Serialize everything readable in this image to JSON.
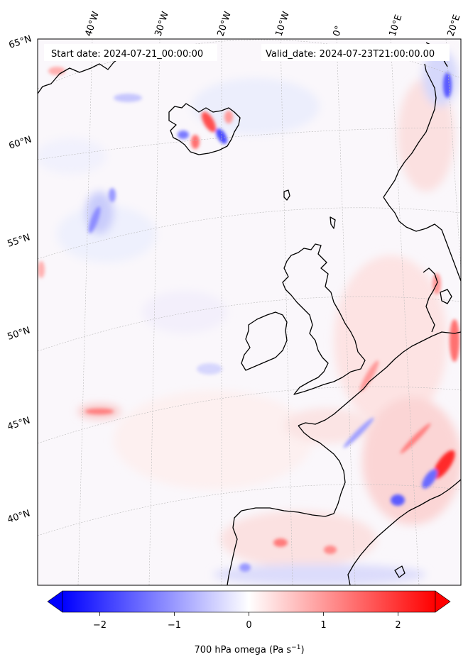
{
  "map": {
    "start_date": "Start date: 2024-07-21_00:00:00",
    "valid_date": "Valid_date: 2024-07-23T21:00:00.00",
    "lon_labels": [
      "40°W",
      "30°W",
      "20°W",
      "10°W",
      "0°",
      "10°E",
      "20°E"
    ],
    "lat_labels": [
      "65°N",
      "60°N",
      "55°N",
      "50°N",
      "45°N",
      "40°N"
    ],
    "variable": "700 hPa omega",
    "units": "Pa s⁻¹"
  },
  "colorbar": {
    "min": -2.5,
    "max": 2.5,
    "ticks": [
      -2,
      -1,
      0,
      1,
      2
    ],
    "tick_labels": [
      "−2",
      "−1",
      "0",
      "1",
      "2"
    ],
    "label": "700 hPa omega (Pa s",
    "label_sup": "−1",
    "label_end": ")",
    "colormap": "bwr",
    "colors": {
      "low": "#0000ff",
      "mid": "#ffffff",
      "high": "#ff0000"
    }
  }
}
